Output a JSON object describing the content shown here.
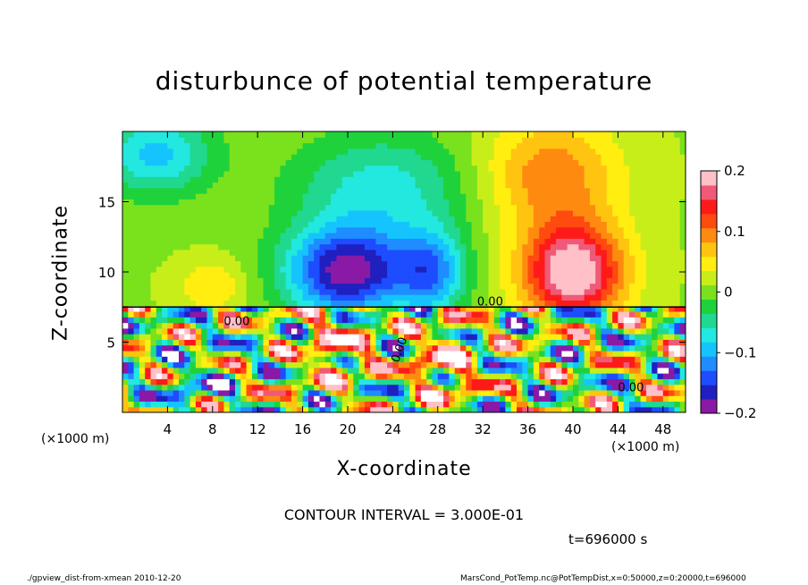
{
  "chart_data": {
    "type": "heatmap",
    "title": "disturbunce of potential temperature",
    "xlabel": "X-coordinate",
    "ylabel": "Z-coordinate",
    "x_unit": "(×1000 m)",
    "y_unit": "(×1000 m)",
    "xlim": [
      0,
      50
    ],
    "ylim": [
      0,
      20
    ],
    "x_ticks": [
      4,
      8,
      12,
      16,
      20,
      24,
      28,
      32,
      36,
      40,
      44,
      48
    ],
    "y_ticks": [
      5,
      10,
      15
    ],
    "colorbar": {
      "range": [
        -0.2,
        0.2
      ],
      "ticks": [
        "0.2",
        "0.1",
        "0",
        "−0.1",
        "−0.2"
      ],
      "tick_values": [
        0.2,
        0.1,
        0,
        -0.1,
        -0.2
      ],
      "colors": [
        "#8a1aa6",
        "#2020c0",
        "#1d4dff",
        "#1f8cff",
        "#15c4ff",
        "#22e8e0",
        "#20d890",
        "#1fd23c",
        "#79e21c",
        "#c8ee1a",
        "#ffee10",
        "#ffc410",
        "#ff8a10",
        "#ff4a10",
        "#ff1a1a",
        "#f05a78",
        "#ffc0c8"
      ]
    },
    "contour_labels": [
      "0.00",
      "0.00",
      "0.00",
      "0.00"
    ],
    "features": [
      {
        "name": "upper-left cold-ish (green/cyan)",
        "x": [
          0,
          12
        ],
        "z": [
          8,
          20
        ],
        "value": -0.05
      },
      {
        "name": "central cold pool",
        "x": [
          14,
          32
        ],
        "z": [
          7.5,
          14
        ],
        "value": -0.18
      },
      {
        "name": "right warm pool",
        "x": [
          36,
          46
        ],
        "z": [
          7.5,
          15
        ],
        "value": 0.17
      },
      {
        "name": "lower turbulent layer",
        "x": [
          0,
          50
        ],
        "z": [
          0,
          7.5
        ],
        "value": "mixed"
      }
    ]
  },
  "contour_interval": "CONTOUR INTERVAL = 3.000E-01",
  "timestamp": "t=696000 s",
  "footer": {
    "left": "./gpview_dist-from-xmean 2010-12-20",
    "right": "MarsCond_PotTemp.nc@PotTempDist,x=0:50000,z=0:20000,t=696000"
  },
  "colors": {
    "background": "#ffffff",
    "frame": "#000000"
  }
}
